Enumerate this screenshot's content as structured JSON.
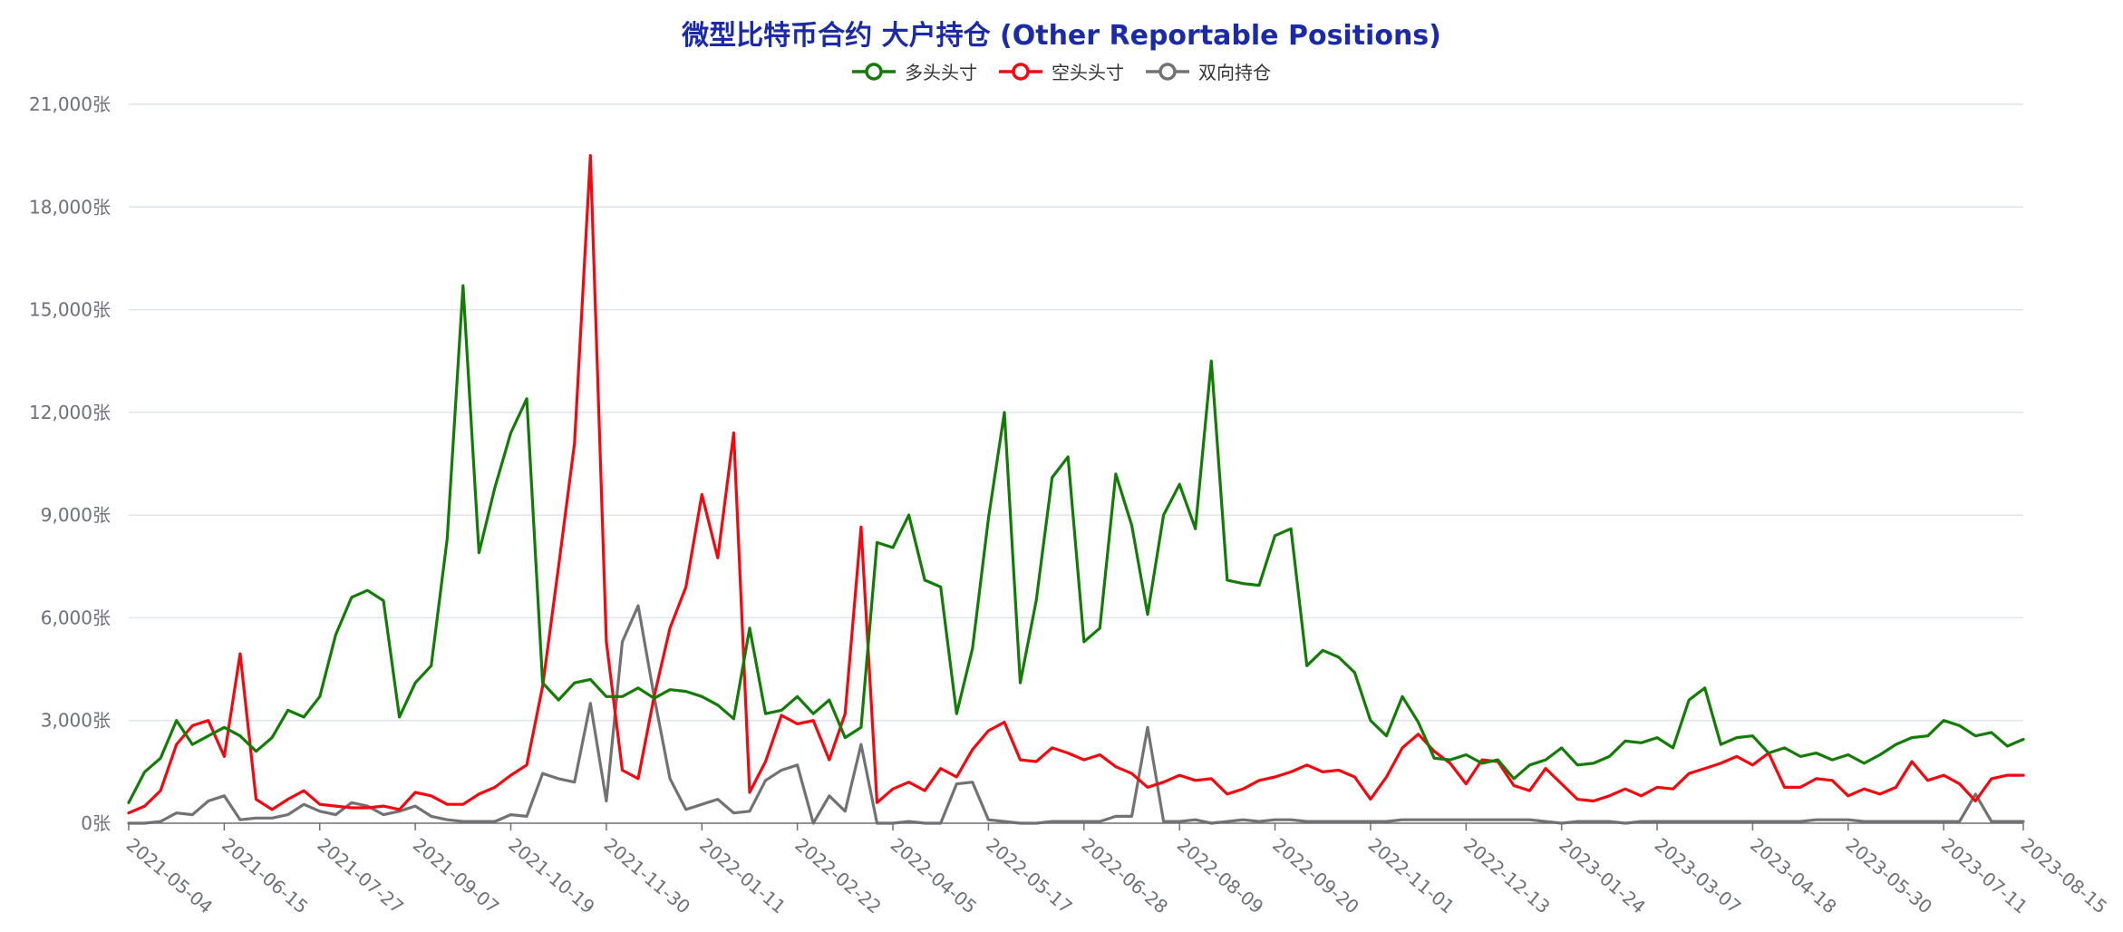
{
  "chart_data": {
    "type": "line",
    "title": "微型比特币合约 大户持仓 (Other Reportable Positions)",
    "y_unit": "张",
    "ylim": [
      0,
      21000
    ],
    "y_ticks": [
      0,
      3000,
      6000,
      9000,
      12000,
      15000,
      18000,
      21000
    ],
    "y_tick_labels": [
      "0张",
      "3,000张",
      "6,000张",
      "9,000张",
      "12,000张",
      "15,000张",
      "18,000张",
      "21,000张"
    ],
    "x_tick_labels": [
      "2021-05-04",
      "2021-06-15",
      "2021-07-27",
      "2021-09-07",
      "2021-10-19",
      "2021-11-30",
      "2022-01-11",
      "2022-02-22",
      "2022-04-05",
      "2022-05-17",
      "2022-06-28",
      "2022-08-09",
      "2022-09-20",
      "2022-11-01",
      "2022-12-13",
      "2023-01-24",
      "2023-03-07",
      "2023-04-18",
      "2023-05-30",
      "2023-07-11",
      "2023-08-15"
    ],
    "x_tick_index": [
      0,
      6,
      12,
      18,
      24,
      30,
      36,
      42,
      48,
      54,
      60,
      66,
      72,
      78,
      84,
      90,
      96,
      102,
      108,
      114,
      119
    ],
    "grid": true,
    "legend_position": "top-center",
    "series": [
      {
        "name": "多头头寸",
        "color": "#137c06",
        "values": [
          600,
          1500,
          1900,
          3000,
          2300,
          2550,
          2800,
          2550,
          2100,
          2500,
          3300,
          3100,
          3700,
          5500,
          6600,
          6800,
          6500,
          3100,
          4100,
          4600,
          8300,
          15700,
          7900,
          9800,
          11400,
          12400,
          4100,
          3600,
          4100,
          4200,
          3700,
          3700,
          3950,
          3650,
          3900,
          3850,
          3700,
          3450,
          3050,
          5700,
          3200,
          3300,
          3700,
          3200,
          3600,
          2500,
          2800,
          8200,
          8050,
          9000,
          7100,
          6900,
          3200,
          5100,
          8900,
          12000,
          4100,
          6500,
          10100,
          10700,
          5300,
          5700,
          10200,
          8700,
          6100,
          9000,
          9900,
          8600,
          13500,
          7100,
          7000,
          6950,
          8400,
          8600,
          4600,
          5050,
          4850,
          4400,
          3000,
          2550,
          3700,
          2950,
          1900,
          1850,
          2000,
          1750,
          1850,
          1300,
          1700,
          1850,
          2200,
          1700,
          1750,
          1950,
          2400,
          2350,
          2500,
          2200,
          3600,
          3950,
          2300,
          2500,
          2550,
          2050,
          2200,
          1950,
          2050,
          1850,
          2000,
          1750,
          2000,
          2300,
          2500,
          2550,
          3000,
          2850,
          2550,
          2650,
          2250,
          2450
        ]
      },
      {
        "name": "空头头寸",
        "color": "#f5070f",
        "values": [
          300,
          500,
          950,
          2300,
          2850,
          3000,
          1950,
          4950,
          700,
          400,
          700,
          950,
          550,
          500,
          450,
          450,
          500,
          400,
          900,
          800,
          550,
          550,
          850,
          1050,
          1400,
          1700,
          4000,
          7500,
          11100,
          19500,
          5300,
          1550,
          1300,
          3700,
          5700,
          6900,
          9600,
          7750,
          11400,
          900,
          1800,
          3150,
          2900,
          3000,
          1850,
          3200,
          8650,
          600,
          1000,
          1200,
          950,
          1600,
          1350,
          2150,
          2700,
          2950,
          1850,
          1800,
          2200,
          2050,
          1850,
          2000,
          1650,
          1450,
          1050,
          1200,
          1400,
          1250,
          1300,
          850,
          1000,
          1250,
          1350,
          1500,
          1700,
          1500,
          1550,
          1350,
          700,
          1350,
          2200,
          2600,
          2100,
          1750,
          1150,
          1850,
          1800,
          1100,
          950,
          1600,
          1150,
          700,
          650,
          800,
          1000,
          800,
          1050,
          1000,
          1450,
          1600,
          1750,
          1950,
          1700,
          2050,
          1050,
          1050,
          1300,
          1250,
          800,
          1000,
          850,
          1050,
          1800,
          1250,
          1400,
          1150,
          650,
          1300,
          1400,
          1400
        ]
      },
      {
        "name": "双向持仓",
        "color": "#727272",
        "values": [
          0,
          0,
          50,
          300,
          250,
          650,
          800,
          100,
          150,
          150,
          250,
          550,
          350,
          250,
          600,
          500,
          250,
          350,
          500,
          200,
          100,
          50,
          50,
          50,
          250,
          200,
          1450,
          1300,
          1200,
          3500,
          650,
          5300,
          6350,
          3700,
          1300,
          400,
          550,
          700,
          300,
          350,
          1250,
          1550,
          1700,
          0,
          800,
          350,
          2300,
          0,
          0,
          50,
          0,
          0,
          1150,
          1200,
          100,
          50,
          0,
          0,
          50,
          50,
          50,
          50,
          200,
          200,
          2800,
          50,
          50,
          100,
          0,
          50,
          100,
          50,
          100,
          100,
          50,
          50,
          50,
          50,
          50,
          50,
          100,
          100,
          100,
          100,
          100,
          100,
          100,
          100,
          100,
          50,
          0,
          50,
          50,
          50,
          0,
          50,
          50,
          50,
          50,
          50,
          50,
          50,
          50,
          50,
          50,
          50,
          100,
          100,
          100,
          50,
          50,
          50,
          50,
          50,
          50,
          50,
          850,
          50,
          50,
          50
        ]
      }
    ]
  }
}
